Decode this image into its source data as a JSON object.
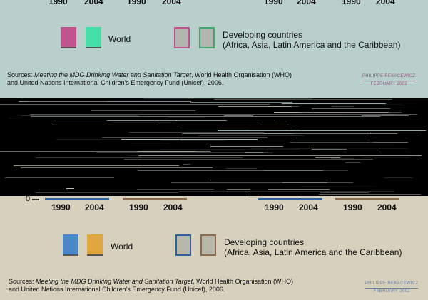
{
  "top_panel": {
    "background": "#b9cfcc",
    "year_labels": [
      "1990",
      "2004",
      "1990",
      "2004",
      "1990",
      "2004",
      "1990",
      "2004"
    ],
    "legend": {
      "world_label": "World",
      "world_colors": [
        "#c0548e",
        "#45dea7"
      ],
      "developing_label_line1": "Developing countries",
      "developing_label_line2": "(Africa, Asia, Latin America and the Caribbean)",
      "developing_colors": [
        "#c0548e",
        "#45a86e"
      ]
    },
    "sources_prefix": "Sources: ",
    "sources_italic": "Meeting the MDG Drinking Water and Sanitation Target",
    "sources_rest1": ", World Health Organisation (WHO)",
    "sources_line2": "and United Nations International Children's Emergency Fund (Unicef), 2006.",
    "credit_name": "PHILIPPE REKACEWICZ",
    "credit_date": "FEBRUARY 2002",
    "credit_color": "#8c5a7a"
  },
  "bottom_panel": {
    "background": "#d6d0bd",
    "zero_label": "0",
    "year_labels": [
      "1990",
      "2004",
      "1990",
      "2004",
      "1990",
      "2004",
      "1990",
      "2004"
    ],
    "legend": {
      "world_label": "World",
      "world_colors": [
        "#4a87c9",
        "#e0a640"
      ],
      "developing_label_line1": "Developing countries",
      "developing_label_line2": "(Africa, Asia, Latin America and the Caribbean)",
      "developing_colors": [
        "#2e5f9e",
        "#8a6d4f"
      ]
    },
    "sources_prefix": "Sources: ",
    "sources_italic": "Meeting the MDG Drinking Water and Sanitation Target",
    "sources_rest1": ", World Health Organisation (WHO)",
    "sources_line2": "and United Nations International Children's Emergency Fund (Unicef), 2006.",
    "credit_name": "PHILIPPE REKACEWICZ",
    "credit_date": "FEBRUARY 2002",
    "credit_color": "#6a83a3"
  },
  "chart_data": [
    {
      "type": "bar",
      "categories": [
        "1990",
        "2004",
        "1990",
        "2004",
        "1990",
        "2004",
        "1990",
        "2004"
      ],
      "legend_entries": [
        "World",
        "Developing countries (Africa, Asia, Latin America and the Caribbean)"
      ]
    },
    {
      "type": "bar",
      "categories": [
        "1990",
        "2004",
        "1990",
        "2004",
        "1990",
        "2004",
        "1990",
        "2004"
      ],
      "ylim_min_label": "0",
      "legend_entries": [
        "World",
        "Developing countries (Africa, Asia, Latin America and the Caribbean)"
      ]
    }
  ]
}
